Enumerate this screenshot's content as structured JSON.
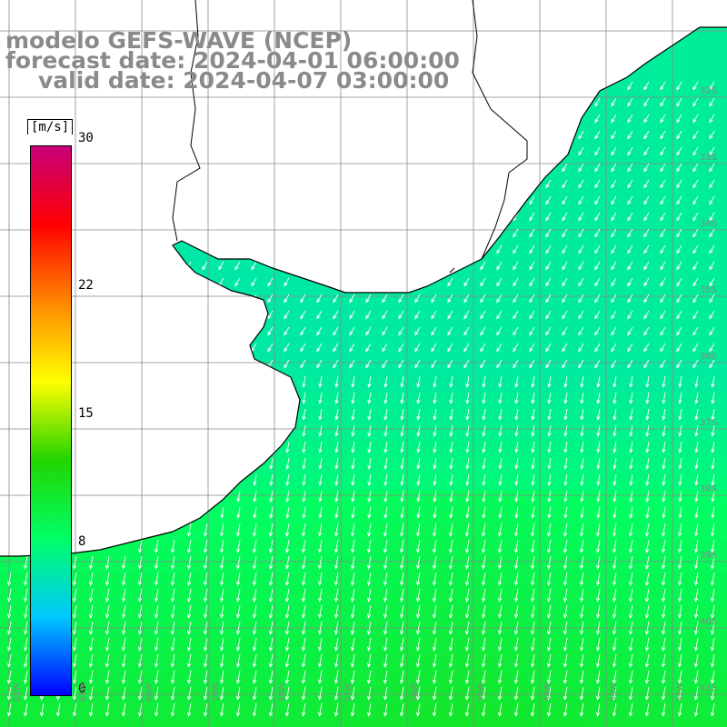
{
  "title": {
    "line1": "modelo GEFS-WAVE (NCEP)",
    "line2": "forecast date: 2024-04-01 06:00:00",
    "line3": "valid date: 2024-04-07 03:00:00"
  },
  "colorbar": {
    "unit": "[m/s]",
    "min": 0,
    "max": 30,
    "ticks": [
      {
        "value": 30,
        "label": "30"
      },
      {
        "value": 22,
        "label": "22"
      },
      {
        "value": 15,
        "label": "15"
      },
      {
        "value": 8,
        "label": "8"
      },
      {
        "value": 0,
        "label": "0"
      }
    ],
    "colors": [
      "#0000ff",
      "#00c8ff",
      "#00ff66",
      "#22d400",
      "#ffff00",
      "#ff8800",
      "#ff0000",
      "#c8007a"
    ]
  },
  "map": {
    "land_color": "#ffffff",
    "coast_color": "#000000",
    "grid_color": "#888888",
    "arrow_color": "#ffffff",
    "lat_labels": [
      "32S",
      "33S",
      "34S",
      "35S",
      "36S",
      "37S",
      "38S",
      "39S",
      "40S",
      "41S"
    ],
    "lon_labels": [
      "62W",
      "61W",
      "60W",
      "59W",
      "58W",
      "57W",
      "56W",
      "55W",
      "54W",
      "53W",
      "52W"
    ]
  }
}
